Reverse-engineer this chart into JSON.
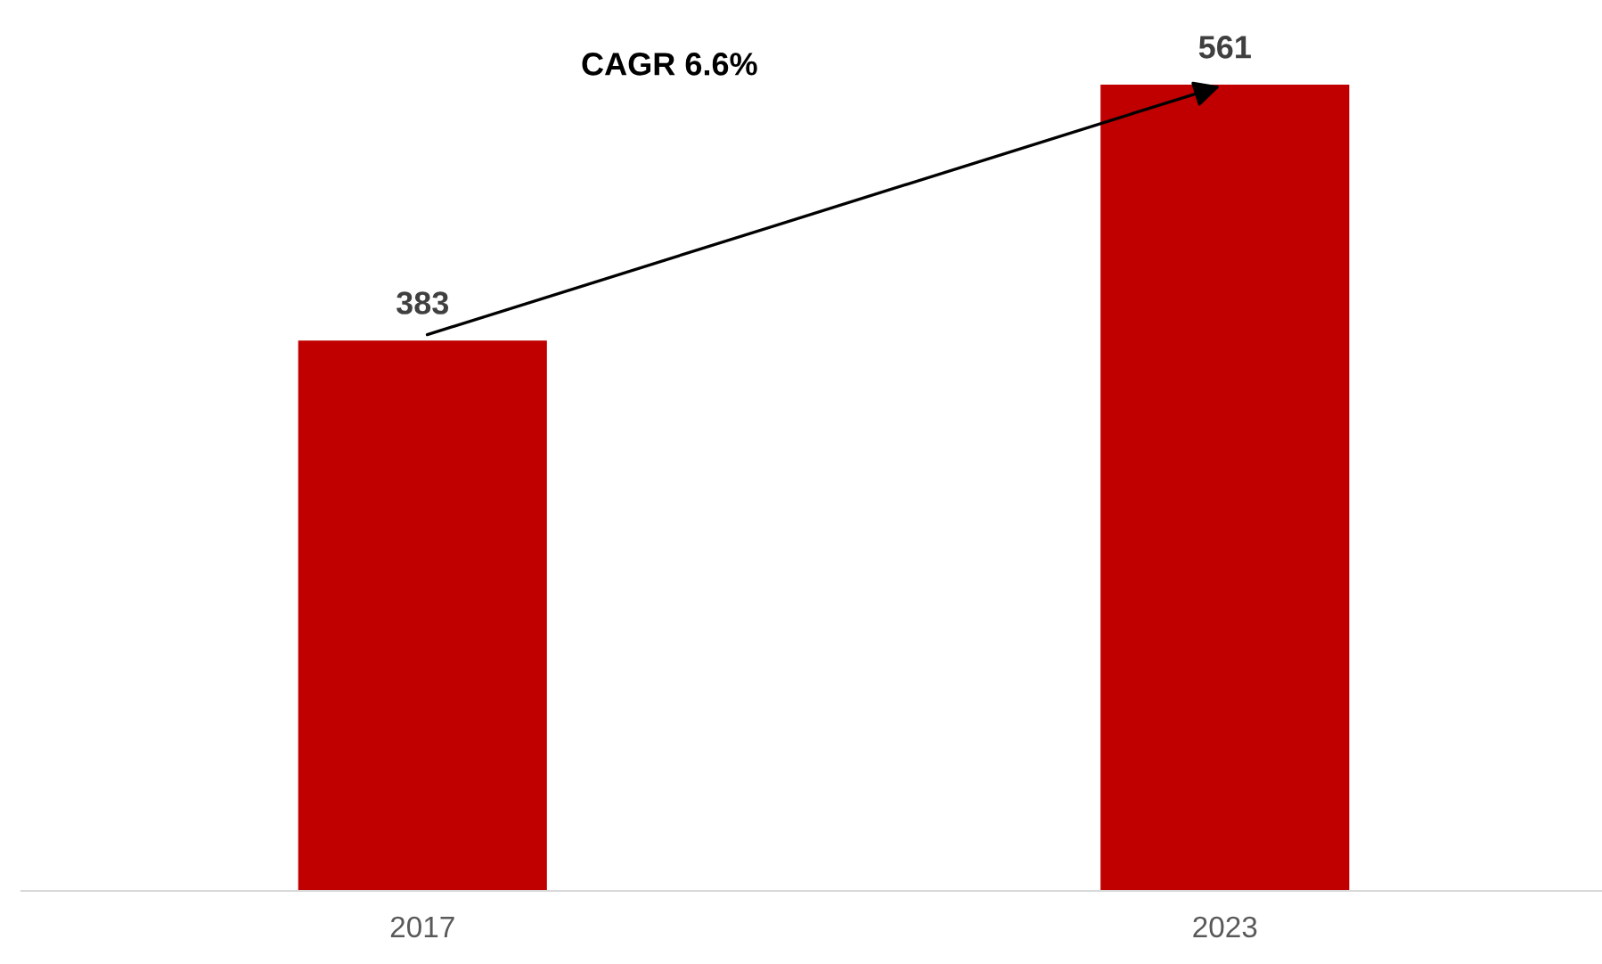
{
  "chart_data": {
    "type": "bar",
    "categories": [
      "2017",
      "2023"
    ],
    "series": [
      {
        "color": "#c00000",
        "values": [
          383,
          561
        ]
      }
    ],
    "data_labels": true,
    "annotations": [
      "CAGR 6.6%"
    ],
    "grid": false,
    "legend": false
  }
}
